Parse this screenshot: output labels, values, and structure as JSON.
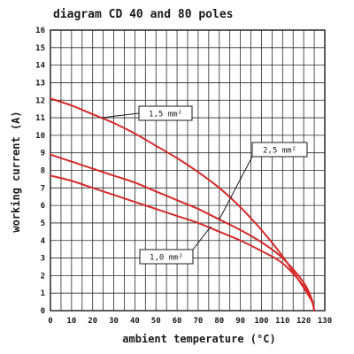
{
  "chart_data": {
    "type": "line",
    "title": "diagram CD 40 and 80 poles",
    "xlabel": "ambient temperature (°C)",
    "ylabel": "working current (A)",
    "xlim": [
      0,
      130
    ],
    "ylim": [
      0,
      16
    ],
    "x_ticks": [
      0,
      10,
      20,
      30,
      40,
      50,
      60,
      70,
      80,
      90,
      100,
      110,
      120,
      130
    ],
    "y_ticks": [
      0,
      1,
      2,
      3,
      4,
      5,
      6,
      7,
      8,
      9,
      10,
      11,
      12,
      13,
      14,
      15,
      16
    ],
    "grid": true,
    "series": [
      {
        "name": "1,5 mm²",
        "color": "#d62a2a",
        "x": [
          0,
          10,
          20,
          30,
          40,
          50,
          60,
          70,
          80,
          90,
          100,
          110,
          120,
          124,
          125
        ],
        "y": [
          12.1,
          11.7,
          11.2,
          10.7,
          10.1,
          9.4,
          8.7,
          7.9,
          7.0,
          5.9,
          4.6,
          3.1,
          1.3,
          0.5,
          0
        ]
      },
      {
        "name": "2,5 mm²",
        "color": "#d62a2a",
        "x": [
          0,
          10,
          20,
          30,
          40,
          50,
          60,
          70,
          80,
          90,
          100,
          110,
          120,
          124,
          125
        ],
        "y": [
          8.9,
          8.5,
          8.1,
          7.7,
          7.3,
          6.8,
          6.3,
          5.8,
          5.2,
          4.6,
          3.9,
          3.0,
          1.6,
          0.6,
          0
        ]
      },
      {
        "name": "1,0 mm²",
        "color": "#d62a2a",
        "x": [
          0,
          10,
          20,
          30,
          40,
          50,
          60,
          70,
          80,
          90,
          100,
          110,
          120,
          124,
          125
        ],
        "y": [
          7.7,
          7.4,
          7.0,
          6.6,
          6.2,
          5.8,
          5.4,
          5.0,
          4.5,
          4.0,
          3.4,
          2.7,
          1.4,
          0.5,
          0
        ]
      }
    ],
    "annotations": [
      {
        "text": "1,5 mm²",
        "series": "1,5 mm²",
        "anchor_x": 24,
        "anchor_y": 11.0
      },
      {
        "text": "2,5 mm²",
        "series": "2,5 mm²",
        "anchor_x": 80,
        "anchor_y": 5.2
      },
      {
        "text": "1,0 mm²",
        "series": "1,0 mm²",
        "anchor_x": 76,
        "anchor_y": 4.8
      }
    ]
  }
}
